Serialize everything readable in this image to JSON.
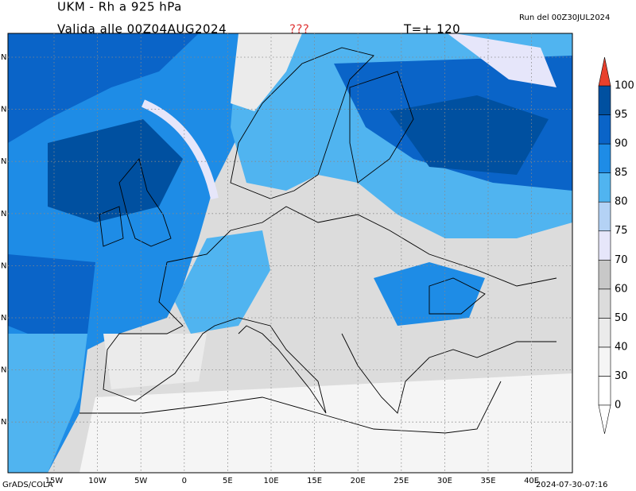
{
  "header": {
    "title": "UKM - Rh a 925 hPa",
    "valid": "Valida alle 00Z04AUG2024",
    "flag": "???",
    "lead": "T=+ 120",
    "run": "Run del 00Z30JUL2024"
  },
  "colorbar": {
    "levels": [
      0,
      30,
      40,
      50,
      60,
      70,
      75,
      80,
      85,
      90,
      95,
      100
    ],
    "colors": [
      "#ffffff",
      "#f5f5f5",
      "#ebebeb",
      "#dcdcdc",
      "#c8c8c8",
      "#e6e6fa",
      "#b4d2f5",
      "#50b4f0",
      "#1e8ce6",
      "#0a64c8",
      "#0050a0"
    ],
    "over_color": "#e8402c"
  },
  "lon_labels": [
    "15W",
    "10W",
    "5W",
    "0",
    "5E",
    "10E",
    "15E",
    "20E",
    "25E",
    "30E",
    "35E",
    "40E"
  ],
  "lat_labels": [
    "N",
    "N",
    "N",
    "N",
    "N",
    "N",
    "N",
    "N"
  ],
  "footer": {
    "left": "GrADS/COLA",
    "right": "2024-07-30-07:16"
  }
}
